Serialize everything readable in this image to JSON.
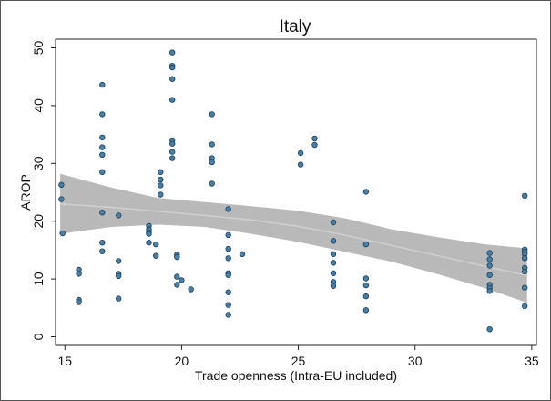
{
  "chart_data": {
    "type": "scatter",
    "title": "Italy",
    "xlabel": "Trade openness (Intra-EU included)",
    "ylabel": "AROP",
    "xlim": [
      14.6,
      35.2
    ],
    "ylim": [
      -1.5,
      51.5
    ],
    "xticks": [
      15,
      20,
      25,
      30,
      35
    ],
    "yticks": [
      0,
      10,
      20,
      30,
      40,
      50
    ],
    "grid": false,
    "legend": "none",
    "colors": {
      "point_fill": "#4a7ea3",
      "point_stroke": "#1e3f5a",
      "band_fill": "#b9b9b9",
      "fit_line": "#d0d0d0"
    },
    "points": [
      [
        14.85,
        26.3
      ],
      [
        14.85,
        23.8
      ],
      [
        14.9,
        17.9
      ],
      [
        15.6,
        11.6
      ],
      [
        15.6,
        10.9
      ],
      [
        15.6,
        6.4
      ],
      [
        15.6,
        6.0
      ],
      [
        16.6,
        43.6
      ],
      [
        16.6,
        38.5
      ],
      [
        16.6,
        34.5
      ],
      [
        16.6,
        32.8
      ],
      [
        16.6,
        31.5
      ],
      [
        16.6,
        28.5
      ],
      [
        16.6,
        21.5
      ],
      [
        16.6,
        16.3
      ],
      [
        16.6,
        14.8
      ],
      [
        17.3,
        21.0
      ],
      [
        17.3,
        13.1
      ],
      [
        17.3,
        10.9
      ],
      [
        17.3,
        10.5
      ],
      [
        17.3,
        6.6
      ],
      [
        18.6,
        19.2
      ],
      [
        18.6,
        18.6
      ],
      [
        18.6,
        18.0
      ],
      [
        18.6,
        17.8
      ],
      [
        18.6,
        16.3
      ],
      [
        18.9,
        16.0
      ],
      [
        18.9,
        14.0
      ],
      [
        19.1,
        28.5
      ],
      [
        19.1,
        27.2
      ],
      [
        19.1,
        26.2
      ],
      [
        19.1,
        24.6
      ],
      [
        19.6,
        49.2
      ],
      [
        19.6,
        46.9
      ],
      [
        19.6,
        46.6
      ],
      [
        19.6,
        44.6
      ],
      [
        19.6,
        41.0
      ],
      [
        19.6,
        34.0
      ],
      [
        19.6,
        33.4
      ],
      [
        19.6,
        32.0
      ],
      [
        19.6,
        30.9
      ],
      [
        19.8,
        14.2
      ],
      [
        19.8,
        13.8
      ],
      [
        19.8,
        10.4
      ],
      [
        19.8,
        9.0
      ],
      [
        20.0,
        9.8
      ],
      [
        20.4,
        8.2
      ],
      [
        21.3,
        38.5
      ],
      [
        21.3,
        33.3
      ],
      [
        21.3,
        30.9
      ],
      [
        21.3,
        30.2
      ],
      [
        21.3,
        26.5
      ],
      [
        22.0,
        22.1
      ],
      [
        22.0,
        17.6
      ],
      [
        22.0,
        15.2
      ],
      [
        22.0,
        13.6
      ],
      [
        22.0,
        11.0
      ],
      [
        22.0,
        10.7
      ],
      [
        22.0,
        7.7
      ],
      [
        22.0,
        5.5
      ],
      [
        22.0,
        3.8
      ],
      [
        22.6,
        14.3
      ],
      [
        25.1,
        31.8
      ],
      [
        25.1,
        29.8
      ],
      [
        25.7,
        34.3
      ],
      [
        25.7,
        33.2
      ],
      [
        26.5,
        19.8
      ],
      [
        26.5,
        16.6
      ],
      [
        26.5,
        14.3
      ],
      [
        26.5,
        12.8
      ],
      [
        26.5,
        11.0
      ],
      [
        26.5,
        9.5
      ],
      [
        26.5,
        8.8
      ],
      [
        27.9,
        25.1
      ],
      [
        27.9,
        16.0
      ],
      [
        27.9,
        10.1
      ],
      [
        27.9,
        8.9
      ],
      [
        27.9,
        7.0
      ],
      [
        27.9,
        4.6
      ],
      [
        33.2,
        14.5
      ],
      [
        33.2,
        13.4
      ],
      [
        33.2,
        12.3
      ],
      [
        33.2,
        10.7
      ],
      [
        33.2,
        9.0
      ],
      [
        33.2,
        8.4
      ],
      [
        33.2,
        7.9
      ],
      [
        33.2,
        1.3
      ],
      [
        34.7,
        24.4
      ],
      [
        34.7,
        15.1
      ],
      [
        34.7,
        14.7
      ],
      [
        34.7,
        14.3
      ],
      [
        34.7,
        13.6
      ],
      [
        34.7,
        11.9
      ],
      [
        34.7,
        11.3
      ],
      [
        34.7,
        8.5
      ],
      [
        34.7,
        5.3
      ]
    ],
    "fit_line": {
      "x": [
        14.8,
        17,
        19,
        21,
        23,
        25,
        27,
        29,
        31,
        33,
        34.8
      ],
      "y": [
        23.0,
        22.4,
        21.7,
        21.0,
        20.2,
        19.1,
        17.6,
        15.8,
        14.0,
        12.2,
        10.6
      ]
    },
    "confidence_band": {
      "x": [
        14.8,
        17,
        19,
        21,
        23,
        25,
        27,
        29,
        31,
        33,
        34.8
      ],
      "upper": [
        28.2,
        25.8,
        24.0,
        23.3,
        22.6,
        21.8,
        20.5,
        18.6,
        17.2,
        16.0,
        15.3
      ],
      "lower": [
        17.8,
        19.0,
        19.4,
        19.0,
        17.8,
        16.4,
        14.7,
        13.0,
        10.8,
        8.4,
        5.9
      ]
    }
  }
}
